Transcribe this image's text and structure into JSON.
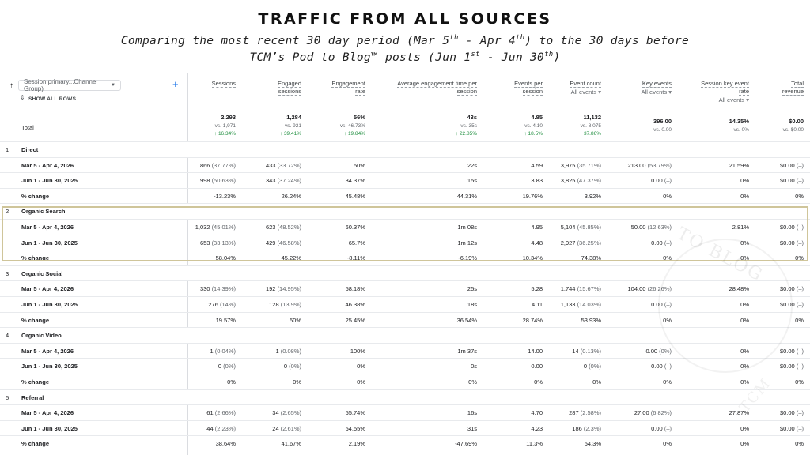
{
  "title": "TRAFFIC FROM ALL SOURCES",
  "subtitle": {
    "line1_a": "Comparing the most recent 30 day period (Mar 5",
    "line1_sup1": "th",
    "line1_b": " - Apr 4",
    "line1_sup2": "th",
    "line1_c": ") to the 30 days before",
    "line2_a": "TCM’s Pod to Blog™ posts (Jun 1",
    "line2_sup1": "st",
    "line2_b": " - Jun 30",
    "line2_sup2": "th",
    "line2_c": ")"
  },
  "watermark": {
    "top": "TO BLOG",
    "bottom": "TCM"
  },
  "dimension": {
    "label": "Session primary...Channel Group)",
    "show_all": "SHOW ALL ROWS"
  },
  "columns": [
    {
      "l1": "Sessions",
      "l2": "",
      "sub": ""
    },
    {
      "l1": "Engaged",
      "l2": "sessions",
      "sub": ""
    },
    {
      "l1": "Engagement",
      "l2": "rate",
      "sub": ""
    },
    {
      "l1": "Average engagement time per",
      "l2": "session",
      "sub": ""
    },
    {
      "l1": "Events per",
      "l2": "session",
      "sub": ""
    },
    {
      "l1": "Event count",
      "l2": "",
      "sub": "All events"
    },
    {
      "l1": "Key events",
      "l2": "",
      "sub": "All events"
    },
    {
      "l1": "Session key event",
      "l2": "rate",
      "sub": "All events"
    },
    {
      "l1": "Total",
      "l2": "revenue",
      "sub": ""
    }
  ],
  "totals": {
    "label": "Total",
    "cells": [
      {
        "v": "2,293",
        "vs": "vs. 1,971",
        "chg": "↑ 16.34%"
      },
      {
        "v": "1,284",
        "vs": "vs. 921",
        "chg": "↑ 39.41%"
      },
      {
        "v": "56%",
        "vs": "vs. 46.73%",
        "chg": "↑ 19.84%"
      },
      {
        "v": "43s",
        "vs": "vs. 35s",
        "chg": "↑ 22.85%"
      },
      {
        "v": "4.85",
        "vs": "vs. 4.10",
        "chg": "↑ 18.5%"
      },
      {
        "v": "11,132",
        "vs": "vs. 8,075",
        "chg": "↑ 37.86%"
      },
      {
        "v": "396.00",
        "vs": "vs. 0.00",
        "chg": ""
      },
      {
        "v": "14.35%",
        "vs": "vs. 0%",
        "chg": ""
      },
      {
        "v": "$0.00",
        "vs": "vs. $0.00",
        "chg": ""
      }
    ]
  },
  "rows": [
    {
      "type": "group",
      "num": "1",
      "label": "Direct"
    },
    {
      "type": "data",
      "label": "Mar 5 - Apr 4, 2026",
      "cells": [
        [
          "866",
          "(37.77%)"
        ],
        [
          "433",
          "(33.72%)"
        ],
        [
          "50%",
          ""
        ],
        [
          "22s",
          ""
        ],
        [
          "4.59",
          ""
        ],
        [
          "3,975",
          "(35.71%)"
        ],
        [
          "213.00",
          "(53.79%)"
        ],
        [
          "21.59%",
          ""
        ],
        [
          "$0.00",
          "(–)"
        ]
      ]
    },
    {
      "type": "data",
      "label": "Jun 1 - Jun 30, 2025",
      "cells": [
        [
          "998",
          "(50.63%)"
        ],
        [
          "343",
          "(37.24%)"
        ],
        [
          "34.37%",
          ""
        ],
        [
          "15s",
          ""
        ],
        [
          "3.83",
          ""
        ],
        [
          "3,825",
          "(47.37%)"
        ],
        [
          "0.00",
          "(–)"
        ],
        [
          "0%",
          ""
        ],
        [
          "$0.00",
          "(–)"
        ]
      ]
    },
    {
      "type": "data",
      "label": "% change",
      "cells": [
        [
          "-13.23%",
          ""
        ],
        [
          "26.24%",
          ""
        ],
        [
          "45.48%",
          ""
        ],
        [
          "44.31%",
          ""
        ],
        [
          "19.76%",
          ""
        ],
        [
          "3.92%",
          ""
        ],
        [
          "0%",
          ""
        ],
        [
          "0%",
          ""
        ],
        [
          "0%",
          ""
        ]
      ]
    },
    {
      "type": "group",
      "num": "2",
      "label": "Organic Search"
    },
    {
      "type": "data",
      "label": "Mar 5 - Apr 4, 2026",
      "cells": [
        [
          "1,032",
          "(45.01%)"
        ],
        [
          "623",
          "(48.52%)"
        ],
        [
          "60.37%",
          ""
        ],
        [
          "1m 08s",
          ""
        ],
        [
          "4.95",
          ""
        ],
        [
          "5,104",
          "(45.85%)"
        ],
        [
          "50.00",
          "(12.63%)"
        ],
        [
          "2.81%",
          ""
        ],
        [
          "$0.00",
          "(–)"
        ]
      ]
    },
    {
      "type": "data",
      "label": "Jun 1 - Jun 30, 2025",
      "cells": [
        [
          "653",
          "(33.13%)"
        ],
        [
          "429",
          "(46.58%)"
        ],
        [
          "65.7%",
          ""
        ],
        [
          "1m 12s",
          ""
        ],
        [
          "4.48",
          ""
        ],
        [
          "2,927",
          "(36.25%)"
        ],
        [
          "0.00",
          "(–)"
        ],
        [
          "0%",
          ""
        ],
        [
          "$0.00",
          "(–)"
        ]
      ]
    },
    {
      "type": "data",
      "label": "% change",
      "cells": [
        [
          "58.04%",
          ""
        ],
        [
          "45.22%",
          ""
        ],
        [
          "-8.11%",
          ""
        ],
        [
          "-6.19%",
          ""
        ],
        [
          "10.34%",
          ""
        ],
        [
          "74.38%",
          ""
        ],
        [
          "0%",
          ""
        ],
        [
          "0%",
          ""
        ],
        [
          "0%",
          ""
        ]
      ]
    },
    {
      "type": "group",
      "num": "3",
      "label": "Organic Social"
    },
    {
      "type": "data",
      "label": "Mar 5 - Apr 4, 2026",
      "cells": [
        [
          "330",
          "(14.39%)"
        ],
        [
          "192",
          "(14.95%)"
        ],
        [
          "58.18%",
          ""
        ],
        [
          "25s",
          ""
        ],
        [
          "5.28",
          ""
        ],
        [
          "1,744",
          "(15.67%)"
        ],
        [
          "104.00",
          "(26.26%)"
        ],
        [
          "28.48%",
          ""
        ],
        [
          "$0.00",
          "(–)"
        ]
      ]
    },
    {
      "type": "data",
      "label": "Jun 1 - Jun 30, 2025",
      "cells": [
        [
          "276",
          "(14%)"
        ],
        [
          "128",
          "(13.9%)"
        ],
        [
          "46.38%",
          ""
        ],
        [
          "18s",
          ""
        ],
        [
          "4.11",
          ""
        ],
        [
          "1,133",
          "(14.03%)"
        ],
        [
          "0.00",
          "(–)"
        ],
        [
          "0%",
          ""
        ],
        [
          "$0.00",
          "(–)"
        ]
      ]
    },
    {
      "type": "data",
      "label": "% change",
      "cells": [
        [
          "19.57%",
          ""
        ],
        [
          "50%",
          ""
        ],
        [
          "25.45%",
          ""
        ],
        [
          "36.54%",
          ""
        ],
        [
          "28.74%",
          ""
        ],
        [
          "53.93%",
          ""
        ],
        [
          "0%",
          ""
        ],
        [
          "0%",
          ""
        ],
        [
          "0%",
          ""
        ]
      ]
    },
    {
      "type": "group",
      "num": "4",
      "label": "Organic Video"
    },
    {
      "type": "data",
      "label": "Mar 5 - Apr 4, 2026",
      "cells": [
        [
          "1",
          "(0.04%)"
        ],
        [
          "1",
          "(0.08%)"
        ],
        [
          "100%",
          ""
        ],
        [
          "1m 37s",
          ""
        ],
        [
          "14.00",
          ""
        ],
        [
          "14",
          "(0.13%)"
        ],
        [
          "0.00",
          "(0%)"
        ],
        [
          "0%",
          ""
        ],
        [
          "$0.00",
          "(–)"
        ]
      ]
    },
    {
      "type": "data",
      "label": "Jun 1 - Jun 30, 2025",
      "cells": [
        [
          "0",
          "(0%)"
        ],
        [
          "0",
          "(0%)"
        ],
        [
          "0%",
          ""
        ],
        [
          "0s",
          ""
        ],
        [
          "0.00",
          ""
        ],
        [
          "0",
          "(0%)"
        ],
        [
          "0.00",
          "(–)"
        ],
        [
          "0%",
          ""
        ],
        [
          "$0.00",
          "(–)"
        ]
      ]
    },
    {
      "type": "data",
      "label": "% change",
      "cells": [
        [
          "0%",
          ""
        ],
        [
          "0%",
          ""
        ],
        [
          "0%",
          ""
        ],
        [
          "0%",
          ""
        ],
        [
          "0%",
          ""
        ],
        [
          "0%",
          ""
        ],
        [
          "0%",
          ""
        ],
        [
          "0%",
          ""
        ],
        [
          "0%",
          ""
        ]
      ]
    },
    {
      "type": "group",
      "num": "5",
      "label": "Referral"
    },
    {
      "type": "data",
      "label": "Mar 5 - Apr 4, 2026",
      "cells": [
        [
          "61",
          "(2.66%)"
        ],
        [
          "34",
          "(2.65%)"
        ],
        [
          "55.74%",
          ""
        ],
        [
          "16s",
          ""
        ],
        [
          "4.70",
          ""
        ],
        [
          "287",
          "(2.58%)"
        ],
        [
          "27.00",
          "(6.82%)"
        ],
        [
          "27.87%",
          ""
        ],
        [
          "$0.00",
          "(–)"
        ]
      ]
    },
    {
      "type": "data",
      "label": "Jun 1 - Jun 30, 2025",
      "cells": [
        [
          "44",
          "(2.23%)"
        ],
        [
          "24",
          "(2.61%)"
        ],
        [
          "54.55%",
          ""
        ],
        [
          "31s",
          ""
        ],
        [
          "4.23",
          ""
        ],
        [
          "186",
          "(2.3%)"
        ],
        [
          "0.00",
          "(–)"
        ],
        [
          "0%",
          ""
        ],
        [
          "$0.00",
          "(–)"
        ]
      ]
    },
    {
      "type": "data",
      "label": "% change",
      "cells": [
        [
          "38.64%",
          ""
        ],
        [
          "41.67%",
          ""
        ],
        [
          "2.19%",
          ""
        ],
        [
          "-47.69%",
          ""
        ],
        [
          "11.3%",
          ""
        ],
        [
          "54.3%",
          ""
        ],
        [
          "0%",
          ""
        ],
        [
          "0%",
          ""
        ],
        [
          "0%",
          ""
        ]
      ]
    }
  ]
}
